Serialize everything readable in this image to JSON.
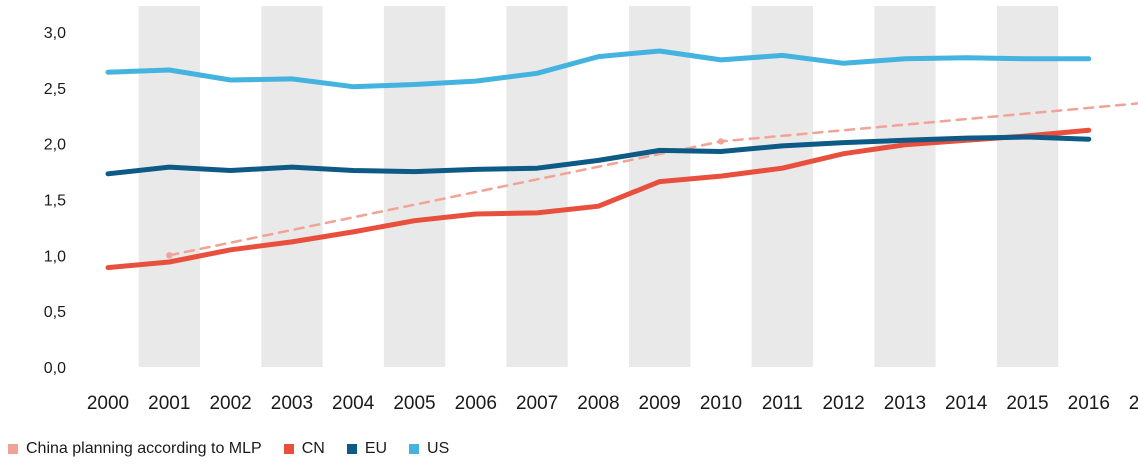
{
  "chart_data": {
    "type": "line",
    "categories": [
      "2000",
      "2001",
      "2002",
      "2003",
      "2004",
      "2005",
      "2006",
      "2007",
      "2008",
      "2009",
      "2010",
      "2011",
      "2012",
      "2013",
      "2014",
      "2015",
      "2016"
    ],
    "x_overflow_label": "2",
    "y_ticks": [
      "0,0",
      "0,5",
      "1,0",
      "1,5",
      "2,0",
      "2,5",
      "3,0"
    ],
    "ylim": [
      0,
      3.0
    ],
    "grid": "alternating vertical bands",
    "legend_position": "bottom-left",
    "series": [
      {
        "name": "China planning according to MLP",
        "color": "#f0a396",
        "style": "dashed",
        "points": [
          [
            2001,
            1.0
          ],
          [
            2010,
            2.02
          ],
          [
            2017,
            2.37
          ]
        ]
      },
      {
        "name": "CN",
        "color": "#e8503d",
        "style": "solid",
        "values": [
          0.89,
          0.94,
          1.05,
          1.12,
          1.21,
          1.31,
          1.37,
          1.38,
          1.44,
          1.66,
          1.71,
          1.78,
          1.91,
          1.99,
          2.03,
          2.07,
          2.12
        ]
      },
      {
        "name": "EU",
        "color": "#0d5a86",
        "style": "solid",
        "values": [
          1.73,
          1.79,
          1.76,
          1.79,
          1.76,
          1.75,
          1.77,
          1.78,
          1.85,
          1.94,
          1.93,
          1.98,
          2.01,
          2.03,
          2.05,
          2.06,
          2.04
        ]
      },
      {
        "name": "US",
        "color": "#44b3df",
        "style": "solid",
        "values": [
          2.64,
          2.66,
          2.57,
          2.58,
          2.51,
          2.53,
          2.56,
          2.63,
          2.78,
          2.83,
          2.75,
          2.79,
          2.72,
          2.76,
          2.77,
          2.76,
          2.76
        ]
      }
    ]
  }
}
